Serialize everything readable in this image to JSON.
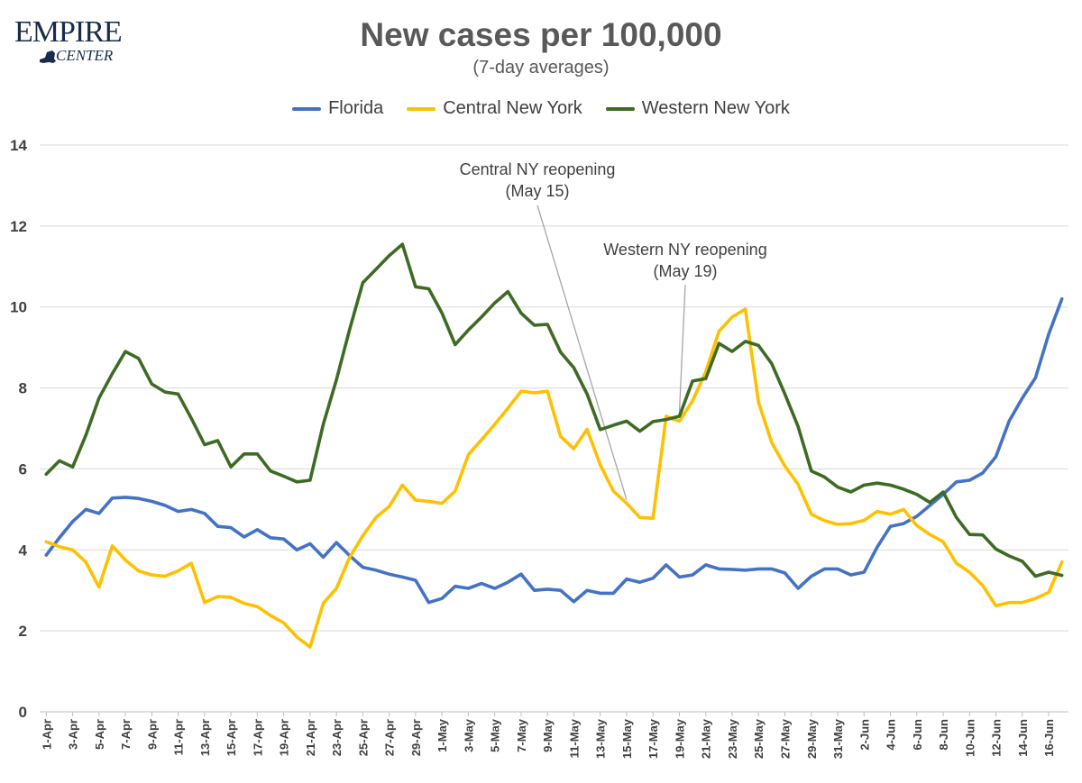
{
  "logo": {
    "word": "EMPIRE",
    "sub": "CENTER"
  },
  "chart_data": {
    "type": "line",
    "title": "New cases per 100,000",
    "subtitle": "(7-day averages)",
    "ylim": [
      0,
      14
    ],
    "yticks": [
      0,
      2,
      4,
      6,
      8,
      10,
      12,
      14
    ],
    "grid": "horizontal",
    "legend_position": "top",
    "x": [
      "1-Apr",
      "2-Apr",
      "3-Apr",
      "4-Apr",
      "5-Apr",
      "6-Apr",
      "7-Apr",
      "8-Apr",
      "9-Apr",
      "10-Apr",
      "11-Apr",
      "12-Apr",
      "13-Apr",
      "14-Apr",
      "15-Apr",
      "16-Apr",
      "17-Apr",
      "18-Apr",
      "19-Apr",
      "20-Apr",
      "21-Apr",
      "22-Apr",
      "23-Apr",
      "24-Apr",
      "25-Apr",
      "26-Apr",
      "27-Apr",
      "28-Apr",
      "29-Apr",
      "30-Apr",
      "1-May",
      "2-May",
      "3-May",
      "4-May",
      "5-May",
      "6-May",
      "7-May",
      "8-May",
      "9-May",
      "10-May",
      "11-May",
      "12-May",
      "13-May",
      "14-May",
      "15-May",
      "16-May",
      "17-May",
      "18-May",
      "19-May",
      "20-May",
      "21-May",
      "22-May",
      "23-May",
      "24-May",
      "25-May",
      "26-May",
      "27-May",
      "28-May",
      "29-May",
      "30-May",
      "31-May",
      "1-Jun",
      "2-Jun",
      "3-Jun",
      "4-Jun",
      "5-Jun",
      "6-Jun",
      "7-Jun",
      "8-Jun",
      "9-Jun",
      "10-Jun",
      "11-Jun",
      "12-Jun",
      "13-Jun",
      "14-Jun",
      "15-Jun",
      "16-Jun",
      "17-Jun"
    ],
    "xtick_labels": [
      "1-Apr",
      "3-Apr",
      "5-Apr",
      "7-Apr",
      "9-Apr",
      "11-Apr",
      "13-Apr",
      "15-Apr",
      "17-Apr",
      "19-Apr",
      "21-Apr",
      "23-Apr",
      "25-Apr",
      "27-Apr",
      "29-Apr",
      "1-May",
      "3-May",
      "5-May",
      "7-May",
      "9-May",
      "11-May",
      "13-May",
      "15-May",
      "17-May",
      "19-May",
      "21-May",
      "23-May",
      "25-May",
      "27-May",
      "29-May",
      "31-May",
      "2-Jun",
      "4-Jun",
      "6-Jun",
      "8-Jun",
      "10-Jun",
      "12-Jun",
      "14-Jun",
      "16-Jun"
    ],
    "series": [
      {
        "name": "Florida",
        "color": "#4472c4",
        "values": [
          3.87,
          4.3,
          4.7,
          5.0,
          4.9,
          5.28,
          5.3,
          5.27,
          5.2,
          5.1,
          4.95,
          5.0,
          4.9,
          4.58,
          4.55,
          4.32,
          4.5,
          4.3,
          4.27,
          4.0,
          4.15,
          3.82,
          4.18,
          3.86,
          3.57,
          3.5,
          3.4,
          3.33,
          3.25,
          2.7,
          2.8,
          3.1,
          3.05,
          3.17,
          3.05,
          3.2,
          3.4,
          3.0,
          3.03,
          3.0,
          2.72,
          3.0,
          2.93,
          2.93,
          3.28,
          3.2,
          3.3,
          3.63,
          3.33,
          3.38,
          3.63,
          3.53,
          3.52,
          3.5,
          3.53,
          3.53,
          3.43,
          3.05,
          3.35,
          3.53,
          3.53,
          3.38,
          3.45,
          4.07,
          4.58,
          4.65,
          4.83,
          5.1,
          5.37,
          5.68,
          5.72,
          5.9,
          6.3,
          7.18,
          7.75,
          8.25,
          9.33,
          10.2
        ]
      },
      {
        "name": "Central New York",
        "color": "#ffc000",
        "values": [
          4.2,
          4.08,
          4.0,
          3.7,
          3.08,
          4.1,
          3.75,
          3.48,
          3.38,
          3.35,
          3.48,
          3.67,
          2.7,
          2.85,
          2.83,
          2.68,
          2.6,
          2.38,
          2.2,
          1.85,
          1.6,
          2.68,
          3.05,
          3.82,
          4.35,
          4.8,
          5.07,
          5.6,
          5.23,
          5.2,
          5.15,
          5.45,
          6.35,
          6.72,
          7.1,
          7.5,
          7.92,
          7.88,
          7.92,
          6.8,
          6.5,
          6.98,
          6.1,
          5.45,
          5.15,
          4.8,
          4.78,
          7.3,
          7.18,
          7.68,
          8.4,
          9.4,
          9.75,
          9.95,
          7.65,
          6.65,
          6.07,
          5.62,
          4.88,
          4.72,
          4.63,
          4.65,
          4.73,
          4.95,
          4.88,
          5.0,
          4.6,
          4.38,
          4.2,
          3.67,
          3.45,
          3.12,
          2.62,
          2.7,
          2.7,
          2.8,
          2.95,
          3.7
        ]
      },
      {
        "name": "Western New York",
        "color": "#3d6b23",
        "values": [
          5.87,
          6.2,
          6.05,
          6.83,
          7.75,
          8.35,
          8.9,
          8.73,
          8.1,
          7.9,
          7.85,
          7.25,
          6.6,
          6.7,
          6.05,
          6.37,
          6.37,
          5.95,
          5.82,
          5.68,
          5.72,
          7.1,
          8.2,
          9.45,
          10.6,
          10.93,
          11.27,
          11.55,
          10.5,
          10.45,
          9.85,
          9.07,
          9.43,
          9.75,
          10.1,
          10.38,
          9.85,
          9.55,
          9.57,
          8.88,
          8.5,
          7.85,
          6.97,
          7.08,
          7.18,
          6.93,
          7.17,
          7.22,
          7.3,
          8.17,
          8.23,
          9.1,
          8.9,
          9.15,
          9.05,
          8.6,
          7.85,
          7.05,
          5.95,
          5.8,
          5.55,
          5.43,
          5.6,
          5.65,
          5.6,
          5.5,
          5.37,
          5.17,
          5.43,
          4.8,
          4.38,
          4.37,
          4.02,
          3.85,
          3.72,
          3.35,
          3.45,
          3.37
        ]
      }
    ],
    "annotations": [
      {
        "line1": "Central NY reopening",
        "line2": "(May 15)",
        "target_x": "15-May"
      },
      {
        "line1": "Western NY reopening",
        "line2": "(May 19)",
        "target_x": "19-May"
      }
    ]
  }
}
